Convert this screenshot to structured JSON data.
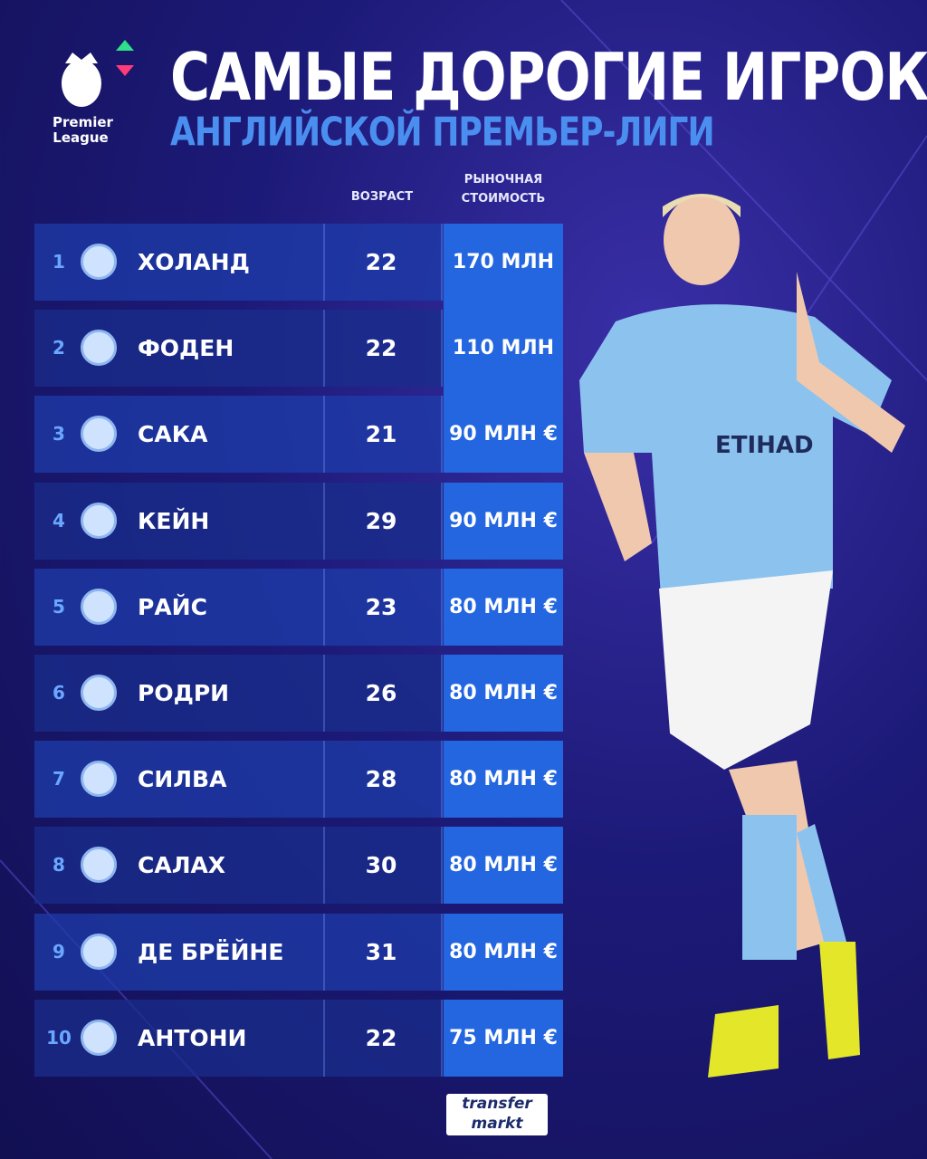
{
  "header": {
    "logo": [
      "Premier",
      "League"
    ],
    "title": "САМЫЕ ДОРОГИЕ ИГРОКИ",
    "subtitle": "АНГЛИЙСКОЙ ПРЕМЬЕР-ЛИГИ"
  },
  "table": {
    "columns": [
      "ВОЗРАСТ",
      "РЫНОЧНАЯ СТОИМОСТЬ"
    ],
    "rows": [
      [
        1,
        "ХОЛАНД",
        22,
        "170 МЛН €"
      ],
      [
        2,
        "ФОДЕН",
        22,
        "110 МЛН €"
      ],
      [
        3,
        "САКА",
        21,
        "90 МЛН €"
      ],
      [
        4,
        "КЕЙН",
        29,
        "90 МЛН €"
      ],
      [
        5,
        "РАЙС",
        23,
        "80 МЛН €"
      ],
      [
        6,
        "РОДРИ",
        26,
        "80 МЛН €"
      ],
      [
        7,
        "СИЛВА",
        28,
        "80 МЛН €"
      ],
      [
        8,
        "САЛАХ",
        30,
        "80 МЛН €"
      ],
      [
        9,
        "ДЕ БРЁЙНЕ",
        31,
        "80 МЛН €"
      ],
      [
        10,
        "АНТОНИ",
        22,
        "75 МЛН €"
      ]
    ]
  },
  "footer": {
    "brand": [
      "transfer",
      "markt"
    ]
  }
}
